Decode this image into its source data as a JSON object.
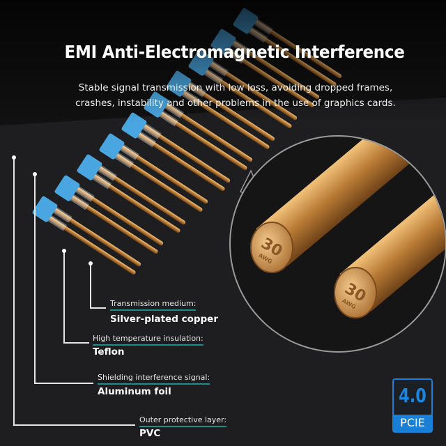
{
  "header": {
    "title": "EMI Anti-Electromagnetic Interference",
    "subtitle_lines": [
      "Stable signal transmission with low loss, avoiding dropped frames,",
      "crashes, instability and other problems in the use of graphics cards."
    ]
  },
  "zoom_callout": {
    "gauge": "30",
    "unit": "AWG"
  },
  "layers": [
    {
      "label": "Transmission medium:",
      "value": "Silver-plated copper"
    },
    {
      "label": "High temperature insulation:",
      "value": "Teflon"
    },
    {
      "label": "Shielding interference signal:",
      "value": "Aluminum foil"
    },
    {
      "label": "Outer protective layer:",
      "value": "PVC"
    }
  ],
  "badge": {
    "version": "4.0",
    "name": "PCIE"
  },
  "colors": {
    "accent_teal": "#1f8c8c",
    "badge_blue": "#1a7fd6",
    "insulator_blue": "#4aa6e0",
    "copper": "#c8924a"
  }
}
